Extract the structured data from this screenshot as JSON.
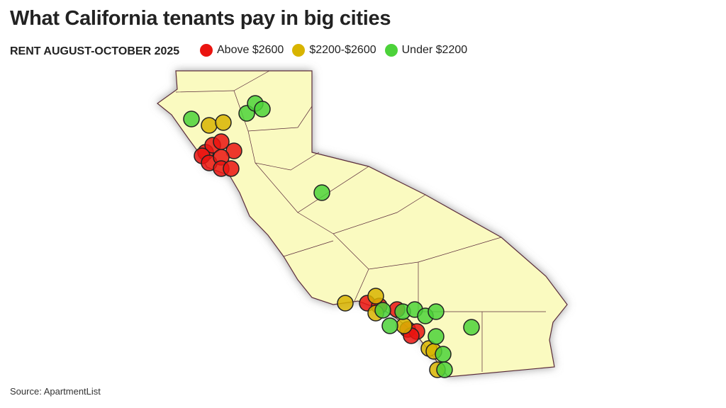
{
  "header": {
    "title": "What California tenants pay in big cities",
    "subtitle": "RENT AUGUST-OCTOBER 2025"
  },
  "legend": [
    {
      "label": "Above $2600",
      "color": "#ea1410"
    },
    {
      "label": "$2200-$2600",
      "color": "#d8b400"
    },
    {
      "label": "Under $2200",
      "color": "#4cd23a"
    }
  ],
  "source": "Source: ApartmentList"
}
